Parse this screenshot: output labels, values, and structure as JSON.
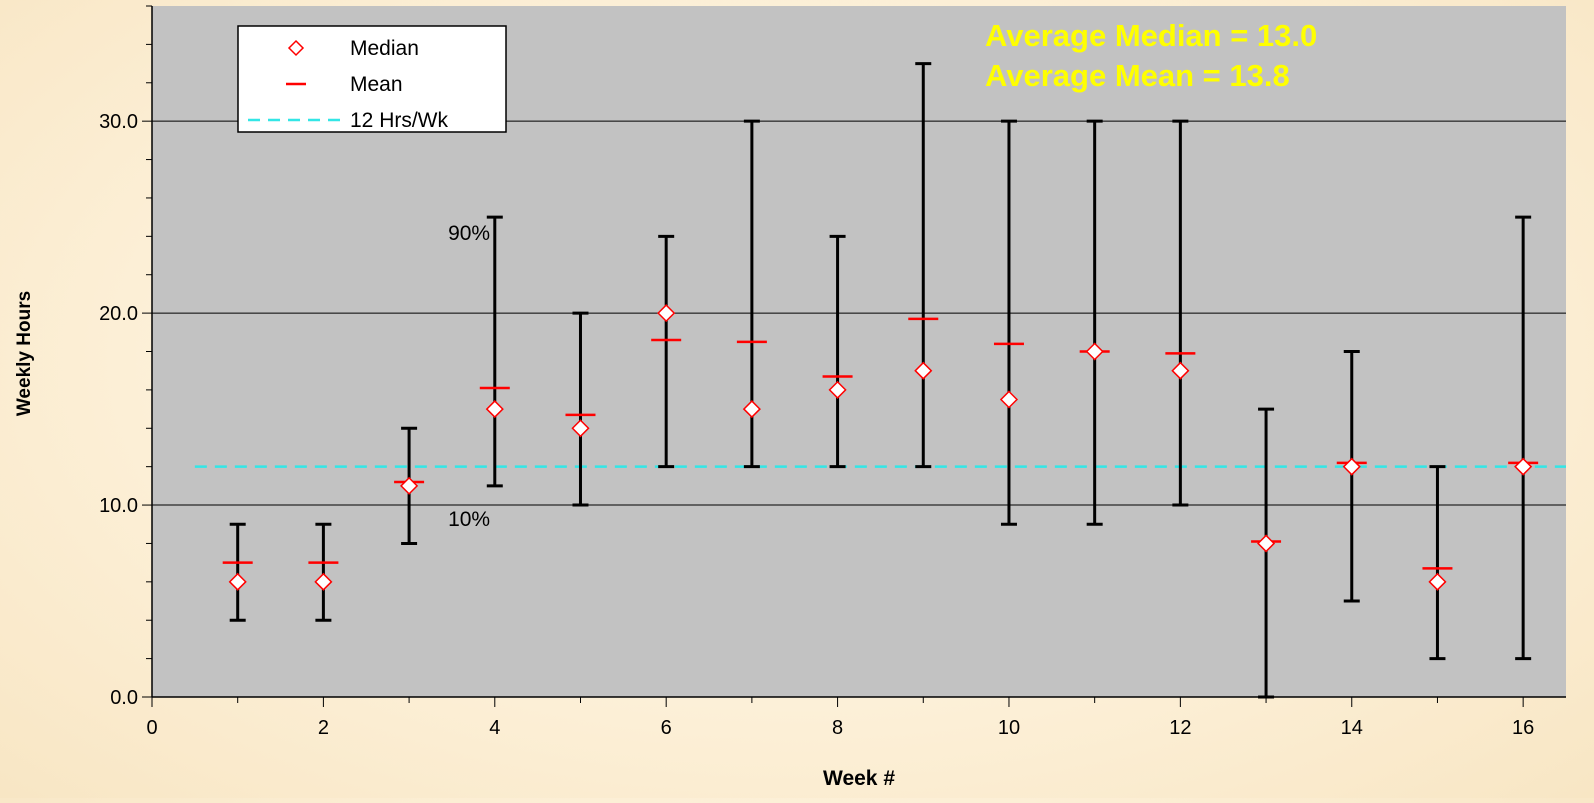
{
  "chart_data": {
    "type": "scatter",
    "xlabel": "Week #",
    "ylabel": "Weekly Hours",
    "xlim": [
      0,
      16.5
    ],
    "ylim": [
      0,
      36
    ],
    "x_ticks": [
      0,
      2,
      4,
      6,
      8,
      10,
      12,
      14,
      16
    ],
    "y_ticks": [
      0,
      10,
      20,
      30
    ],
    "y_tick_labels": [
      "0.0",
      "10.0",
      "20.0",
      "30.0"
    ],
    "grid": "horizontal at 10, 20, 30",
    "background_color": "#c2c2c2",
    "legend": {
      "position": "top-left",
      "entries": [
        {
          "label": "Median",
          "marker": "diamond",
          "color": "#ff0000"
        },
        {
          "label": "Mean",
          "marker": "dash",
          "color": "#ff0000"
        },
        {
          "label": "12 Hrs/Wk",
          "marker": "dashed-line",
          "color": "#33e6e6"
        }
      ]
    },
    "weeks": [
      1,
      2,
      3,
      4,
      5,
      6,
      7,
      8,
      9,
      10,
      11,
      12,
      13,
      14,
      15,
      16
    ],
    "series": [
      {
        "name": "Median",
        "values": [
          6,
          6,
          11,
          15,
          14,
          20,
          15,
          16,
          17,
          15.5,
          18,
          17,
          8,
          12,
          6,
          12
        ]
      },
      {
        "name": "Mean",
        "values": [
          7,
          7,
          11.2,
          16.1,
          14.7,
          18.6,
          18.5,
          16.7,
          19.7,
          18.4,
          18,
          17.9,
          8.1,
          12.2,
          6.7,
          12.2
        ]
      },
      {
        "name": "10%",
        "values": [
          4,
          4,
          8,
          11,
          10,
          12,
          12,
          12,
          12,
          9,
          9,
          10,
          0,
          5,
          2,
          2
        ]
      },
      {
        "name": "90%",
        "values": [
          9,
          9,
          14,
          25,
          20,
          24,
          30,
          24,
          33,
          30,
          30,
          30,
          15,
          18,
          12,
          25
        ]
      }
    ],
    "reference_line": {
      "label": "12 Hrs/Wk",
      "y": 12,
      "x_start": 0.5,
      "x_end": 16.5
    },
    "annotations": [
      {
        "text": "90%",
        "x": 3.7,
        "y": 23.8
      },
      {
        "text": "10%",
        "x": 3.7,
        "y": 8.9
      }
    ],
    "stats_text": [
      "Average Median = 13.0",
      "Average Mean = 13.8"
    ],
    "stats_color": "#ffff00"
  }
}
